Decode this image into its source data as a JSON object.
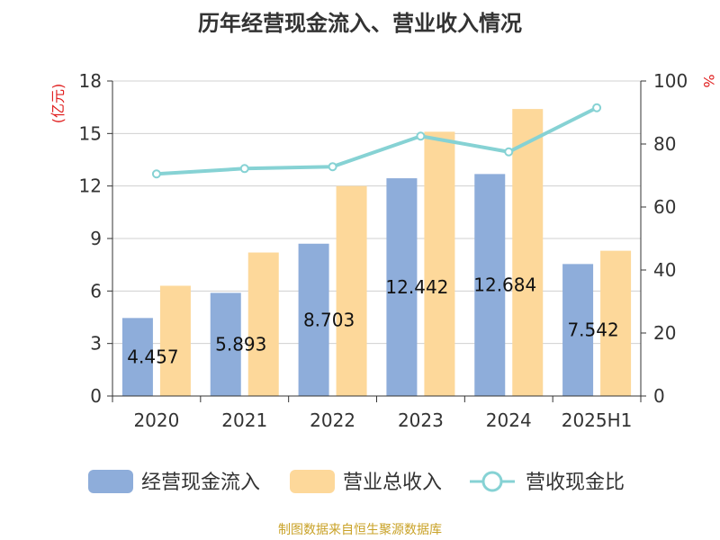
{
  "source_text": "制图数据来自恒生聚源数据库",
  "colors": {
    "bar1": "#8eadda",
    "bar2": "#fdd89a",
    "line": "#86d2d4",
    "grid": "#d0d0d0",
    "axis": "#333333",
    "unit": "#e02020"
  },
  "chart_data": {
    "type": "bar",
    "title": "历年经营现金流入、营业收入情况",
    "categories": [
      "2020",
      "2021",
      "2022",
      "2023",
      "2024",
      "2025H1"
    ],
    "y_left": {
      "unit": "(亿元)",
      "ylim": [
        0,
        18
      ],
      "ticks": [
        0,
        3,
        6,
        9,
        12,
        15,
        18
      ]
    },
    "y_right": {
      "unit": "%",
      "ylim": [
        0,
        100
      ],
      "ticks": [
        0,
        20,
        40,
        60,
        80,
        100
      ]
    },
    "grid": true,
    "legend_position": "bottom",
    "series": [
      {
        "name": "经营现金流入",
        "type": "bar",
        "axis": "left",
        "values": [
          4.457,
          5.893,
          8.703,
          12.442,
          12.684,
          7.542
        ],
        "labels": [
          "4.457",
          "5.893",
          "8.703",
          "12.442",
          "12.684",
          "7.542"
        ]
      },
      {
        "name": "营业总收入",
        "type": "bar",
        "axis": "left",
        "values": [
          6.3,
          8.2,
          12.0,
          15.1,
          16.4,
          8.3
        ]
      },
      {
        "name": "营收现金比",
        "type": "line",
        "axis": "right",
        "values": [
          70.5,
          72.2,
          72.8,
          82.5,
          77.5,
          91.5
        ]
      }
    ]
  }
}
